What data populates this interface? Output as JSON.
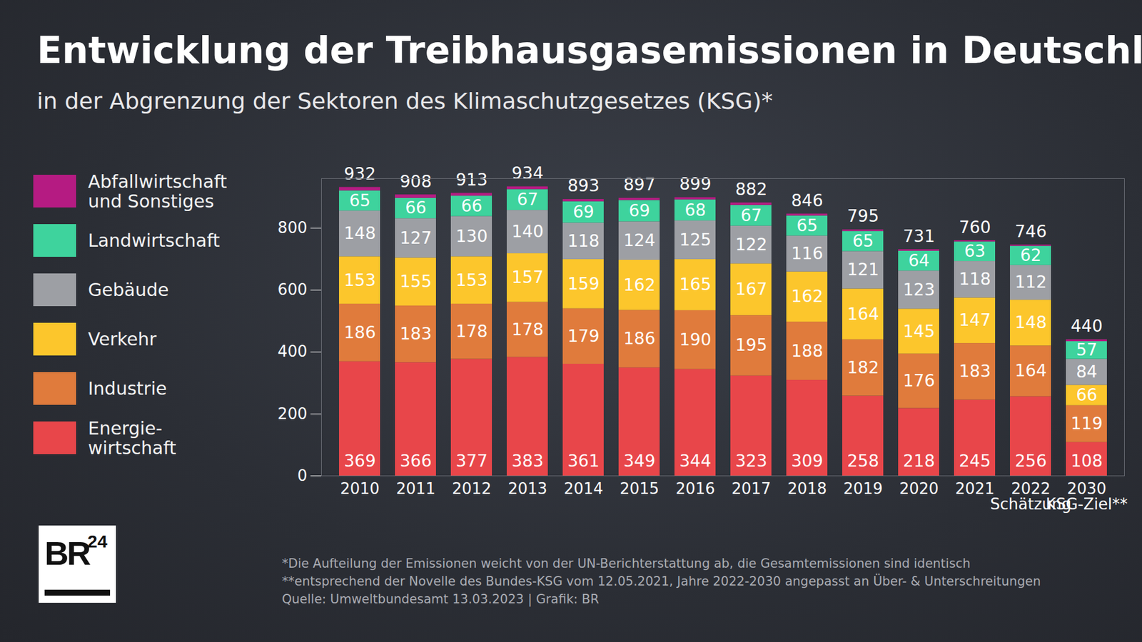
{
  "chart_data": {
    "type": "bar",
    "title": "Entwicklung der Treibhausgasemissionen in Deutschland",
    "subtitle": "in der Abgrenzung der Sektoren des Klimaschutzgesetzes (KSG)*",
    "categories": [
      "2010",
      "2011",
      "2012",
      "2013",
      "2014",
      "2015",
      "2016",
      "2017",
      "2018",
      "2019",
      "2020",
      "2021",
      "2022\nSchätzung",
      "2030\nKSG-Ziel**"
    ],
    "series": [
      {
        "name": "Energie-\nwirtschaft",
        "color": "#e8464a",
        "values": [
          369,
          366,
          377,
          383,
          361,
          349,
          344,
          323,
          309,
          258,
          218,
          245,
          256,
          108
        ]
      },
      {
        "name": "Industrie",
        "color": "#e07b3c",
        "values": [
          186,
          183,
          178,
          178,
          179,
          186,
          190,
          195,
          188,
          182,
          176,
          183,
          164,
          119
        ]
      },
      {
        "name": "Verkehr",
        "color": "#fcc62c",
        "values": [
          153,
          155,
          153,
          157,
          159,
          162,
          165,
          167,
          162,
          164,
          145,
          147,
          148,
          66
        ]
      },
      {
        "name": "Gebäude",
        "color": "#9d9fa4",
        "values": [
          148,
          127,
          130,
          140,
          118,
          124,
          125,
          122,
          116,
          121,
          123,
          118,
          112,
          84
        ]
      },
      {
        "name": "Landwirtschaft",
        "color": "#3ed39d",
        "values": [
          65,
          66,
          66,
          67,
          69,
          69,
          68,
          67,
          65,
          65,
          64,
          63,
          62,
          57
        ]
      },
      {
        "name": "Abfallwirtschaft\nund Sonstiges",
        "color": "#b51b82",
        "values": [
          11,
          11,
          9,
          9,
          7,
          7,
          7,
          8,
          6,
          5,
          5,
          4,
          4,
          6
        ],
        "data_labels": false
      }
    ],
    "totals": [
      932,
      908,
      913,
      934,
      893,
      897,
      899,
      882,
      846,
      795,
      731,
      760,
      746,
      440
    ],
    "ylim": [
      0,
      960
    ],
    "yticks": [
      0,
      200,
      400,
      600,
      800
    ],
    "stacked": true,
    "data_labels": true,
    "legend": "left",
    "grid": false,
    "notes": [
      "*Die Aufteilung der Emissionen weicht von der UN-Berichterstattung ab, die Gesamtemissionen sind identisch",
      "**entsprechend der Novelle des Bundes-KSG vom 12.05.2021, Jahre 2022-2030 angepasst an Über- & Unterschreitungen",
      "Quelle: Umweltbundesamt 13.03.2023  | Grafik: BR"
    ],
    "logo": {
      "text": "BR",
      "superscript": "24"
    }
  }
}
